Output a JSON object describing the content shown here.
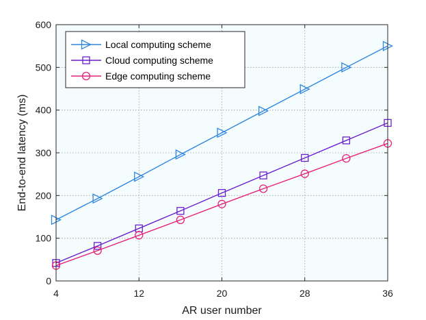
{
  "chart_data": {
    "type": "line",
    "title": "",
    "xlabel": "AR user number",
    "ylabel": "End-to-end latency (ms)",
    "x": [
      4,
      8,
      12,
      16,
      20,
      24,
      28,
      32,
      36
    ],
    "xlim": [
      4,
      36
    ],
    "ylim": [
      0,
      600
    ],
    "xticks": [
      4,
      12,
      20,
      28,
      36
    ],
    "yticks": [
      0,
      100,
      200,
      300,
      400,
      500,
      600
    ],
    "grid": true,
    "legend_position": "top-left",
    "plot_background": "#f5fcfd",
    "series": [
      {
        "name": "Local computing scheme",
        "color": "#2e86de",
        "marker": "triangle-right",
        "values": [
          143,
          193,
          244,
          296,
          347,
          398,
          449,
          500,
          550
        ]
      },
      {
        "name": "Cloud computing scheme",
        "color": "#6a1fd1",
        "marker": "square",
        "values": [
          42,
          82,
          123,
          164,
          206,
          247,
          288,
          329,
          370
        ]
      },
      {
        "name": "Edge computing scheme",
        "color": "#e6227a",
        "marker": "circle",
        "values": [
          36,
          71,
          107,
          143,
          180,
          216,
          251,
          287,
          322
        ]
      }
    ]
  }
}
